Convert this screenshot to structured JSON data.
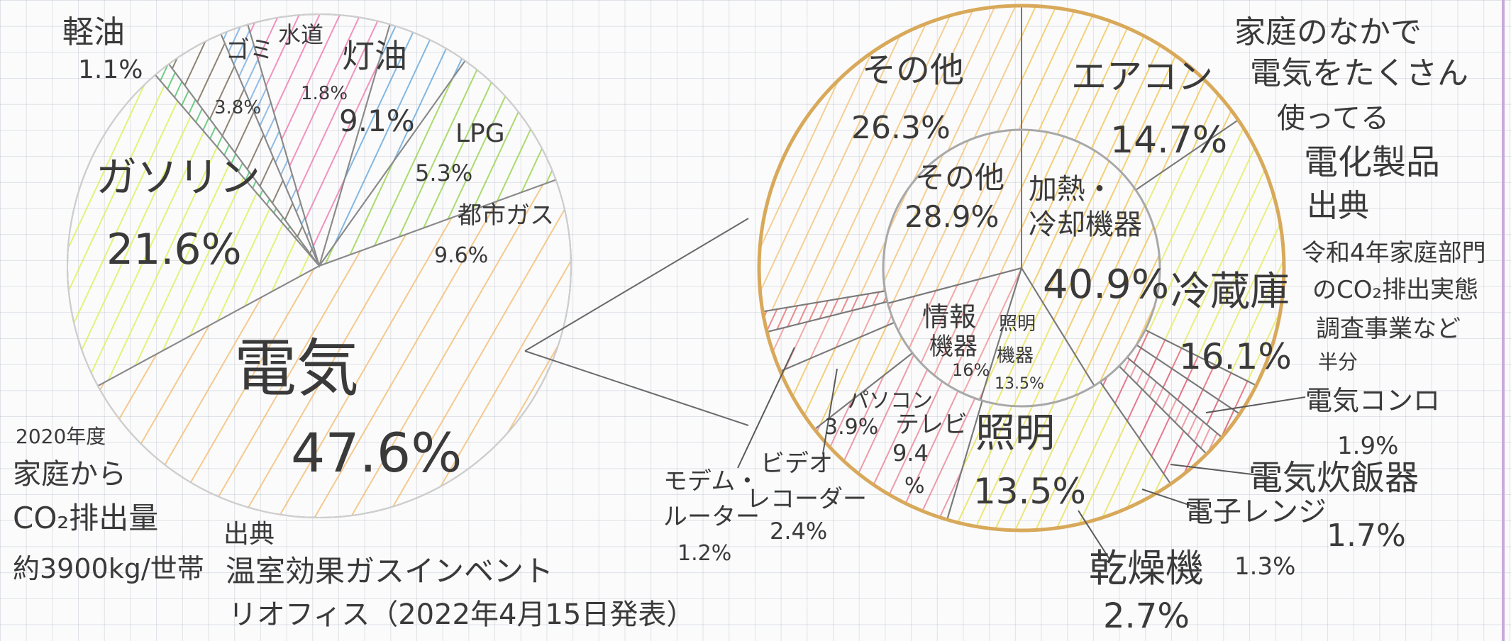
{
  "chart_data": [
    {
      "type": "pie",
      "slices": [
        {
          "label": "電気",
          "value": 47.6,
          "display": "47.6%",
          "color": "#f2b868"
        },
        {
          "label": "ガソリン",
          "value": 21.6,
          "display": "21.6%",
          "color": "#d9f04a"
        },
        {
          "label": "軽油",
          "value": 1.1,
          "display": "1.1%",
          "color": "#3fbf5a"
        },
        {
          "label": "ゴミ",
          "value": 3.8,
          "display": "3.8%",
          "color": "#6b5a45"
        },
        {
          "label": "水道",
          "value": 1.8,
          "display": "1.8%",
          "color": "#6aa6e0"
        },
        {
          "label": "灯油",
          "value": 9.1,
          "display": "9.1%",
          "color": "#ef6fa8"
        },
        {
          "label": "LPG",
          "value": 5.3,
          "display": "5.3%",
          "color": "#5aa0d8"
        },
        {
          "label": "都市ガス",
          "value": 9.6,
          "display": "9.6%",
          "color": "#8fd03a"
        }
      ]
    },
    {
      "type": "pie",
      "slices": [
        {
          "label": "エアコン",
          "value": 14.7,
          "display": "14.7%",
          "color": "#f1c24a"
        },
        {
          "label": "冷蔵庫",
          "value": 16.1,
          "display": "16.1%",
          "color": "#e3ea52"
        },
        {
          "label": "電気コンロ",
          "value": 1.9,
          "display": "1.9%",
          "color": "#e05561"
        },
        {
          "label": "電気炊飯器",
          "value": 1.7,
          "display": "1.7%",
          "color": "#d6465a"
        },
        {
          "label": "電子レンジ",
          "value": 1.3,
          "display": "1.3%",
          "color": "#e9808a"
        },
        {
          "label": "乾燥機",
          "value": 2.7,
          "display": "2.7%",
          "color": "#e14c6a"
        },
        {
          "label": "照明",
          "value": 13.5,
          "display": "13.5%",
          "color": "#e4e04a"
        },
        {
          "label": "テレビ",
          "value": 9.4,
          "display": "9.4%",
          "color": "#e87a8e"
        },
        {
          "label": "パソコン",
          "value": 3.9,
          "display": "3.9%",
          "color": "#f0c050"
        },
        {
          "label": "ビデオレコーダー",
          "value": 2.4,
          "display": "2.4%",
          "color": "#ef8f8f"
        },
        {
          "label": "モデム・ルーター",
          "value": 1.2,
          "display": "1.2%",
          "color": "#e56767"
        },
        {
          "label": "その他",
          "value": 26.3,
          "display": "26.3%",
          "color": "#f2c070"
        }
      ],
      "inner_slices": [
        {
          "label": "加熱・冷却機器",
          "value": 40.9,
          "display": "40.9%"
        },
        {
          "label": "照明機器",
          "value": 13.5,
          "display": "13.5%"
        },
        {
          "label": "情報機器",
          "value": 16.0,
          "display": "16%"
        },
        {
          "label": "その他",
          "value": 28.9,
          "display": "28.9%"
        }
      ]
    }
  ],
  "left_labels": {
    "keiyu": "軽油",
    "keiyu_pct": "1.1%",
    "gomi": "ゴミ",
    "gomi_pct": "3.8%",
    "suido": "水道",
    "suido_pct": "1.8%",
    "toyu": "灯油",
    "toyu_pct": "9.1%",
    "lpg": "LPG",
    "lpg_pct": "5.3%",
    "toshigas": "都市ガス",
    "toshigas_pct": "9.6%",
    "gasoline": "ガソリン",
    "gasoline_pct": "21.6%",
    "denki": "電気",
    "denki_pct": "47.6%"
  },
  "right_labels": {
    "sonota": "その他",
    "sonota_pct": "26.3%",
    "aircon": "エアコン",
    "aircon_pct": "14.7%",
    "reizoko": "冷蔵庫",
    "reizoko_pct": "16.1%",
    "inner_sonota": "その他",
    "inner_sonota_pct": "28.9%",
    "kanetsu_1": "加熱・",
    "kanetsu_2": "冷却機器",
    "kanetsu_pct": "40.9%",
    "joho_1": "情報",
    "joho_2": "機器",
    "joho_pct": "16%",
    "shomei_kiki_1": "照明",
    "shomei_kiki_2": "機器",
    "shomei_kiki_pct": "13.5%",
    "pc": "パソコン",
    "pc_pct": "3.9%",
    "tv": "テレビ",
    "tv_pct": "9.4",
    "tv_pct2": "%",
    "shomei": "照明",
    "shomei_pct": "13.5%",
    "konro": "電気コンロ",
    "konro_pct": "1.9%",
    "suihan": "電気炊飯器",
    "suihan_pct": "1.7%",
    "renji": "電子レンジ",
    "renji_pct": "1.3%",
    "kansoki": "乾燥機",
    "kansoki_pct": "2.7%",
    "video_1": "ビデオ",
    "video_2": "レコーダー",
    "video_pct": "2.4%",
    "modem_1": "モデム・",
    "modem_2": "ルーター",
    "modem_pct": "1.2%"
  },
  "notes": {
    "left_1": "2020年度",
    "left_2": "家庭から",
    "left_3": "CO₂排出量",
    "left_4": "約3900kg/世帯",
    "source_head": "出典",
    "source_1": "温室効果ガスインベント",
    "source_2": "リオフィス（2022年4月15日発表）",
    "right_1": "家庭のなかで",
    "right_2": "電気をたくさん",
    "right_3": "使ってる",
    "right_4": "電化製品",
    "right_5": "出典",
    "right_6": "令和4年家庭部門",
    "right_7": "のCO₂排出実態",
    "right_8": "調査事業など",
    "right_9": "半分"
  },
  "colors": {
    "pencil": "#5a5a5a",
    "ring": "#d8a95a",
    "paper": "#fbfbfc",
    "margin": "#c9a9d9"
  }
}
